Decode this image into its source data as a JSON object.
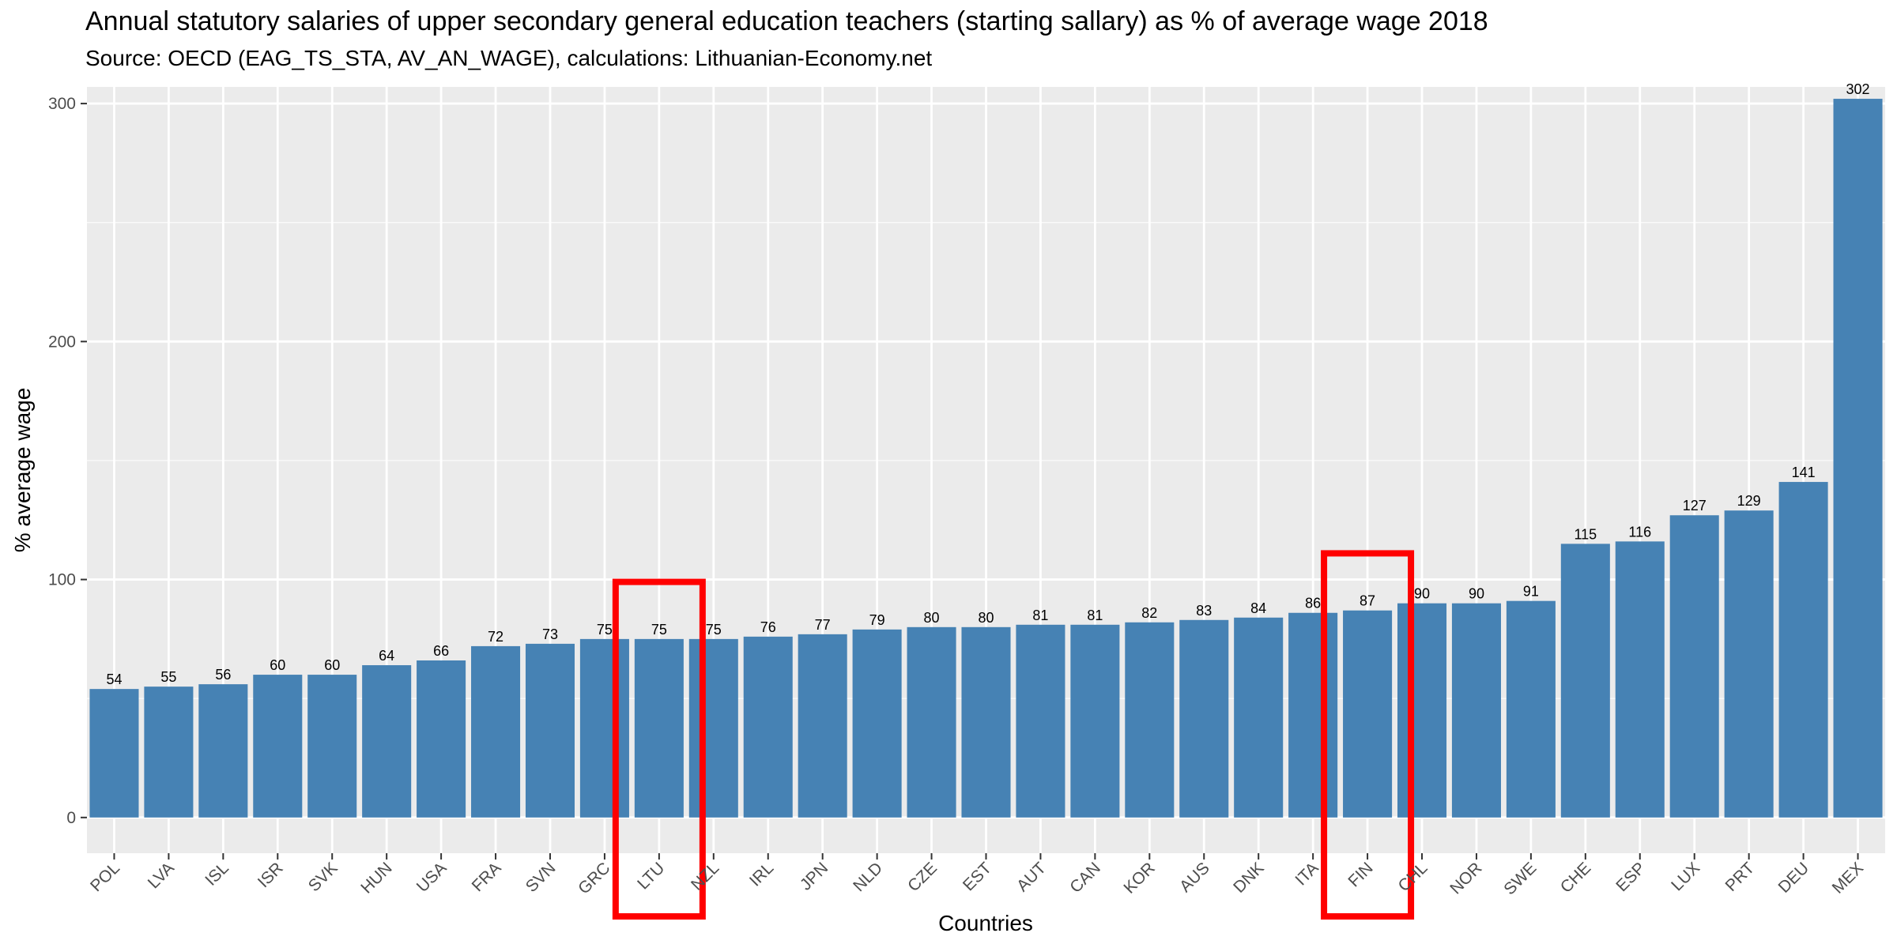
{
  "chart_data": {
    "type": "bar",
    "title": "Annual statutory salaries of upper secondary general education teachers (starting sallary) as % of average wage 2018",
    "subtitle": "Source: OECD (EAG_TS_STA, AV_AN_WAGE), calculations: Lithuanian-Economy.net",
    "xlabel": "Countries",
    "ylabel": "% average wage",
    "ylim": [
      -15,
      307
    ],
    "yticks": [
      0,
      100,
      200,
      300
    ],
    "grid": true,
    "legend": "none",
    "categories": [
      "POL",
      "LVA",
      "ISL",
      "ISR",
      "SVK",
      "HUN",
      "USA",
      "FRA",
      "SVN",
      "GRC",
      "LTU",
      "NZL",
      "IRL",
      "JPN",
      "NLD",
      "CZE",
      "EST",
      "AUT",
      "CAN",
      "KOR",
      "AUS",
      "DNK",
      "ITA",
      "FIN",
      "CHL",
      "NOR",
      "SWE",
      "CHE",
      "ESP",
      "LUX",
      "PRT",
      "DEU",
      "MEX"
    ],
    "values": [
      54,
      55,
      56,
      60,
      60,
      64,
      66,
      72,
      73,
      75,
      75,
      75,
      76,
      77,
      79,
      80,
      80,
      81,
      81,
      82,
      83,
      84,
      86,
      87,
      90,
      90,
      91,
      115,
      116,
      127,
      129,
      141,
      302
    ],
    "data_labels": [
      "54",
      "55",
      "56",
      "60",
      "60",
      "64",
      "66",
      "72",
      "73",
      "75",
      "75",
      "75",
      "76",
      "77",
      "79",
      "80",
      "80",
      "81",
      "81",
      "82",
      "83",
      "84",
      "86",
      "87",
      "90",
      "90",
      "91",
      "115",
      "116",
      "127",
      "129",
      "141",
      "302"
    ],
    "highlighted": [
      "LTU",
      "FIN"
    ],
    "colors": {
      "bar": "#4682B4",
      "panel": "#EBEBEB",
      "grid_major": "#FFFFFF",
      "highlight_box": "#FF0000"
    }
  }
}
